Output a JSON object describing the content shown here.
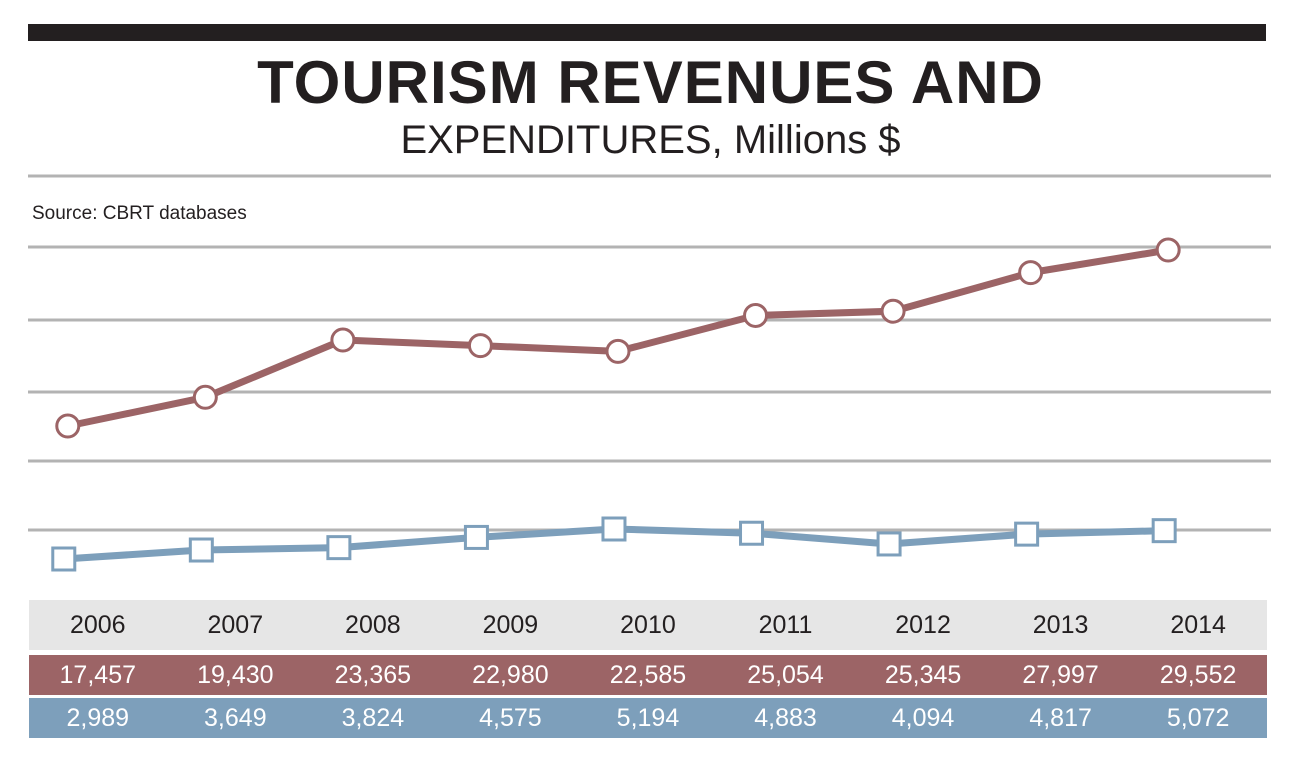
{
  "title": {
    "line1": "TOURISM REVENUES AND",
    "line2": "EXPENDITURES, Millions $"
  },
  "source": "Source: CBRT databases",
  "colors": {
    "revenue": "#9c6466",
    "expenditure": "#7d9fbb",
    "grid": "#b3b3b3",
    "dark": "#231f20"
  },
  "chart_data": {
    "type": "line",
    "title": "TOURISM REVENUES AND EXPENDITURES, Millions $",
    "xlabel": "",
    "ylabel": "",
    "categories": [
      "2006",
      "2007",
      "2008",
      "2009",
      "2010",
      "2011",
      "2012",
      "2013",
      "2014"
    ],
    "series": [
      {
        "name": "Revenues",
        "marker": "circle",
        "values": [
          17457,
          19430,
          23365,
          22980,
          22585,
          25054,
          25345,
          27997,
          29552
        ],
        "labels": [
          "17,457",
          "19,430",
          "23,365",
          "22,980",
          "22,585",
          "25,054",
          "25,345",
          "27,997",
          "29,552"
        ]
      },
      {
        "name": "Expenditures",
        "marker": "square",
        "values": [
          2989,
          3649,
          3824,
          4575,
          5194,
          4883,
          4094,
          4817,
          5072
        ],
        "labels": [
          "2,989",
          "3,649",
          "3,824",
          "4,575",
          "5,194",
          "4,883",
          "4,094",
          "4,817",
          "5,072"
        ]
      }
    ],
    "ylim": [
      0,
      30000
    ],
    "grid": true,
    "y_ticks_labeled": false
  }
}
